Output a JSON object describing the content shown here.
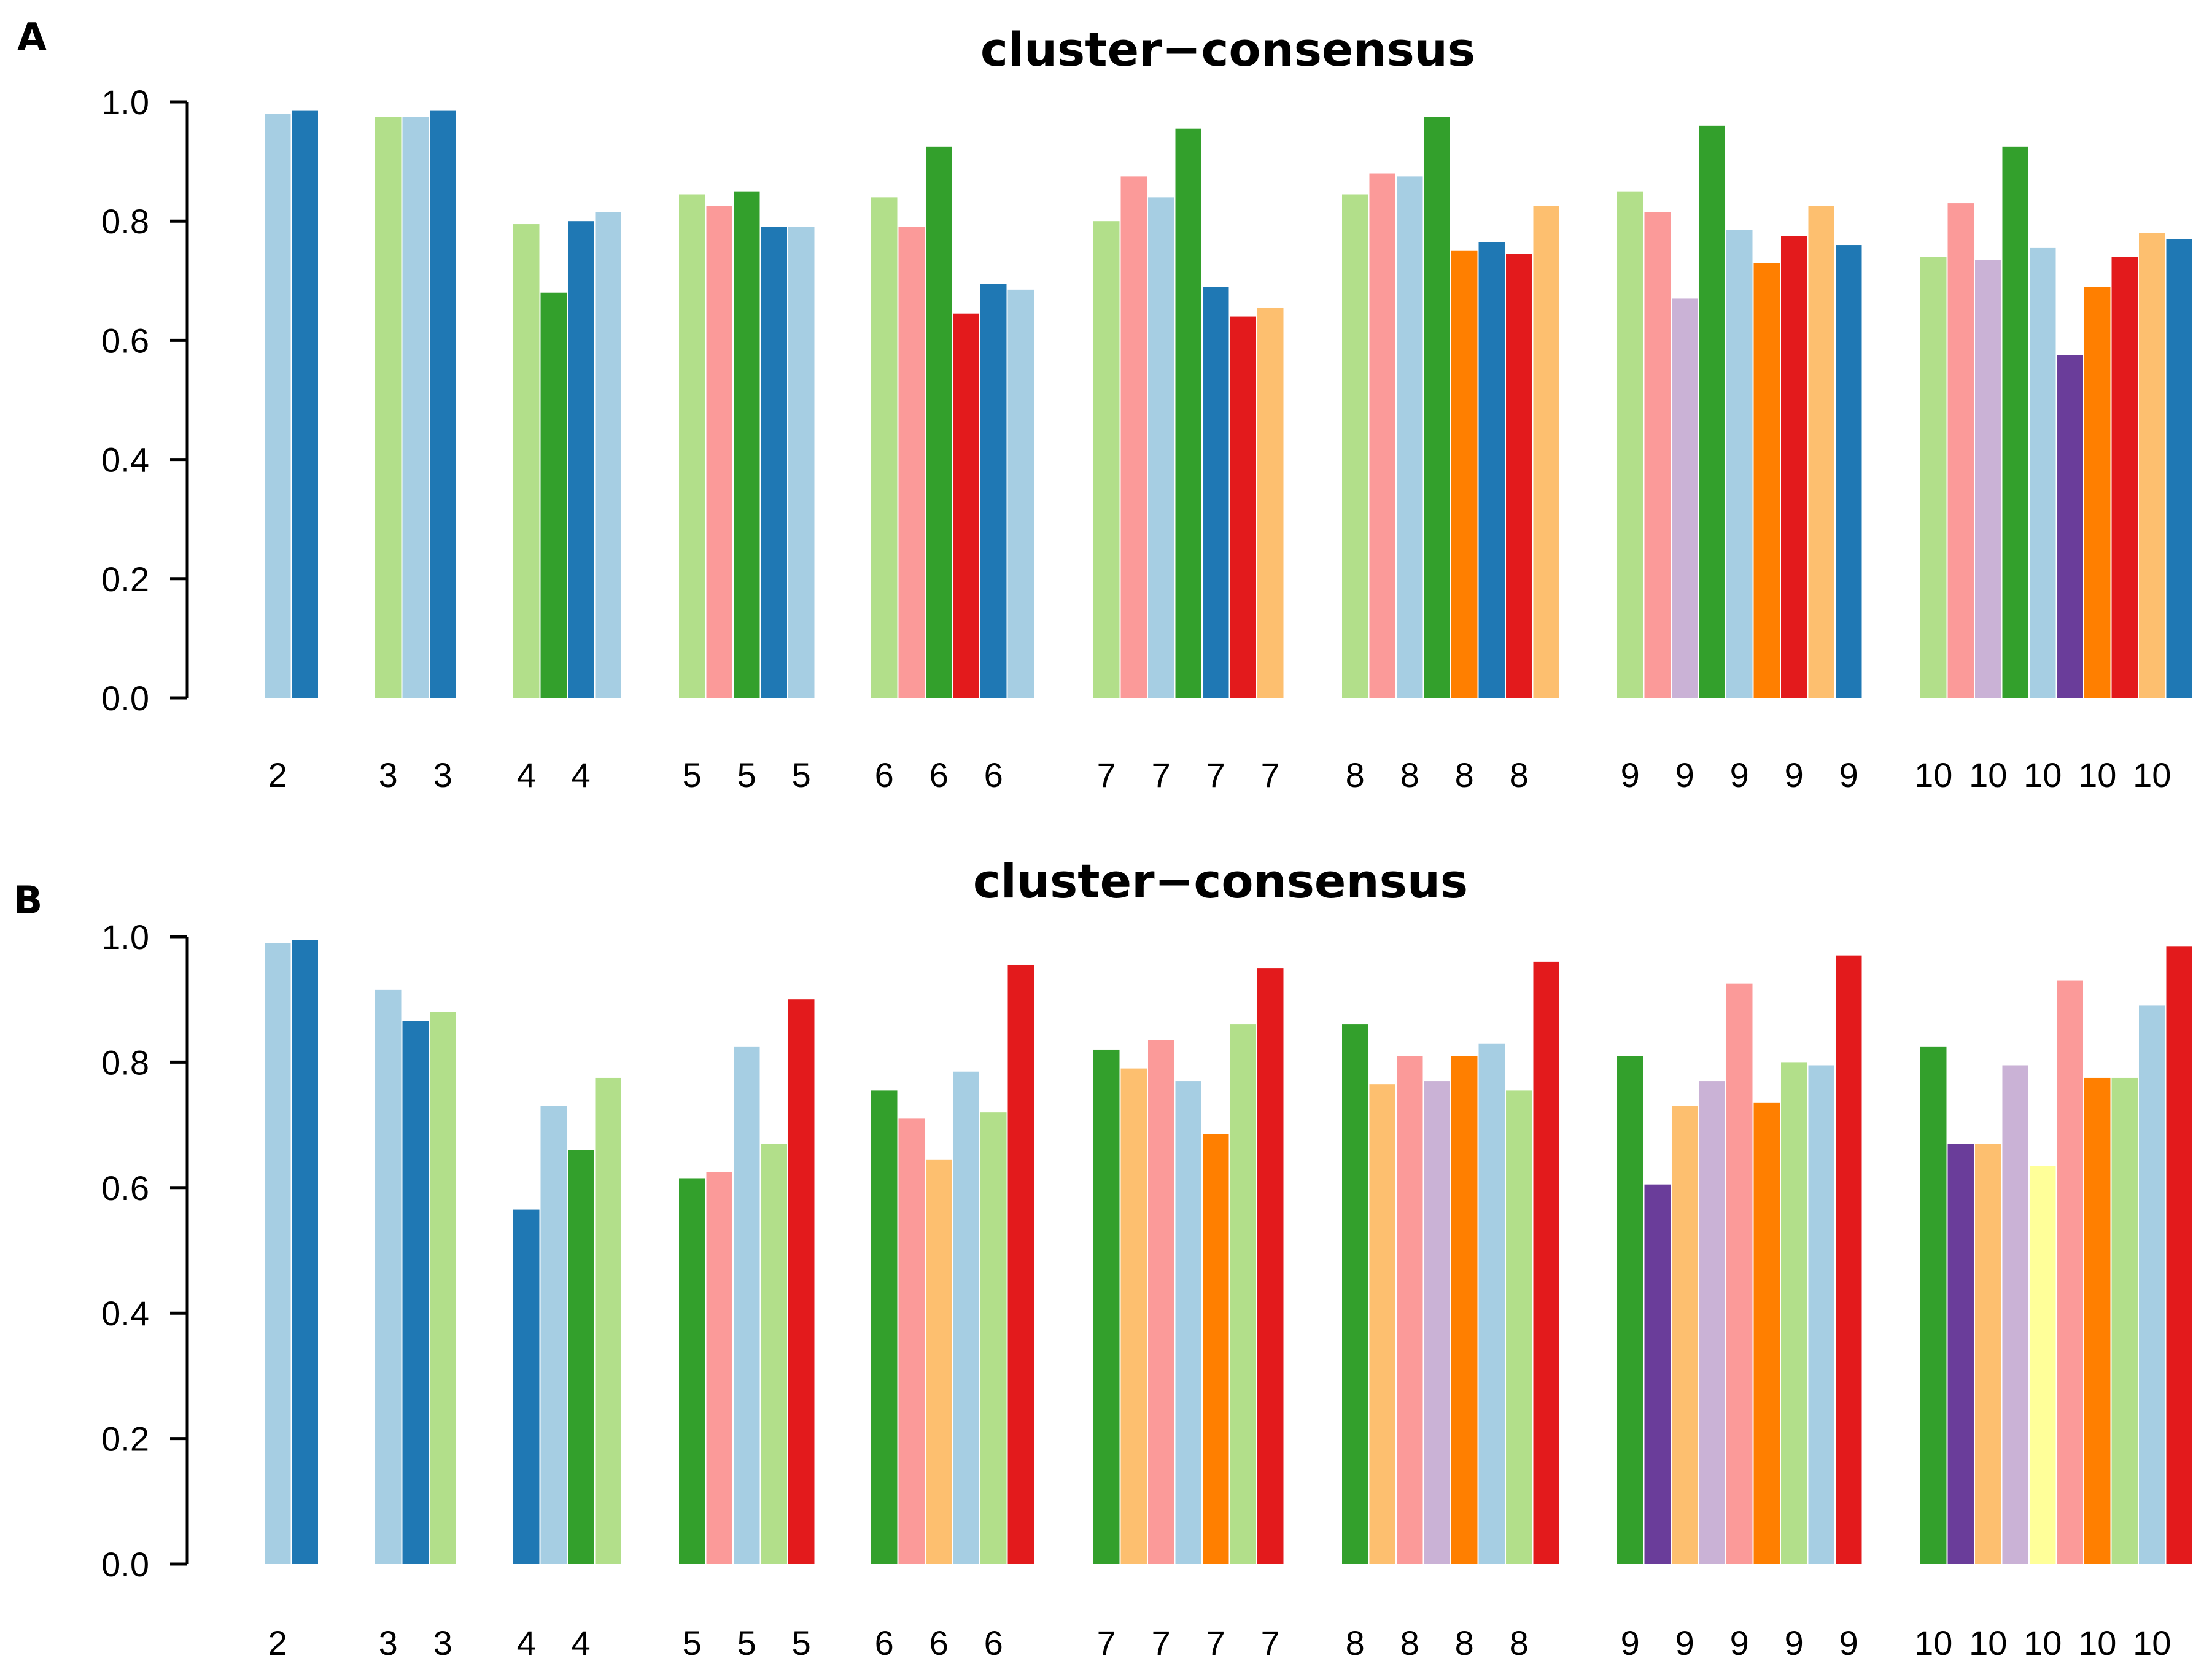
{
  "colors": {
    "light_blue": "#a6cee3",
    "dark_blue": "#1f78b4",
    "light_green": "#b2df8a",
    "dark_green": "#33a02c",
    "pink": "#fb9a99",
    "red": "#e31a1c",
    "light_orange": "#fdbf6f",
    "orange": "#ff7f00",
    "lavender": "#cab2d6",
    "purple": "#6a3d9a",
    "yellow": "#ffff99"
  },
  "chart_data": [
    {
      "panel": "A",
      "type": "bar",
      "title": "cluster−consensus",
      "xlabel": "",
      "ylabel": "",
      "ylim": [
        0,
        1
      ],
      "yticks": [
        "0.0",
        "0.2",
        "0.4",
        "0.6",
        "0.8",
        "1.0"
      ],
      "groups": [
        {
          "k": "2",
          "values": [
            0.98,
            0.985
          ],
          "colors": [
            "light_blue",
            "dark_blue"
          ]
        },
        {
          "k": "3",
          "values": [
            0.975,
            0.975,
            0.985
          ],
          "colors": [
            "light_green",
            "light_blue",
            "dark_blue"
          ]
        },
        {
          "k": "4",
          "values": [
            0.795,
            0.68,
            0.8,
            0.815
          ],
          "colors": [
            "light_green",
            "dark_green",
            "dark_blue",
            "light_blue"
          ]
        },
        {
          "k": "5",
          "values": [
            0.845,
            0.825,
            0.85,
            0.79,
            0.79
          ],
          "colors": [
            "light_green",
            "pink",
            "dark_green",
            "dark_blue",
            "light_blue"
          ]
        },
        {
          "k": "6",
          "values": [
            0.84,
            0.79,
            0.925,
            0.645,
            0.695,
            0.685
          ],
          "colors": [
            "light_green",
            "pink",
            "dark_green",
            "red",
            "dark_blue",
            "light_blue"
          ]
        },
        {
          "k": "7",
          "values": [
            0.8,
            0.875,
            0.84,
            0.955,
            0.69,
            0.64,
            0.655
          ],
          "colors": [
            "light_green",
            "pink",
            "light_blue",
            "dark_green",
            "dark_blue",
            "red",
            "light_orange"
          ]
        },
        {
          "k": "8",
          "values": [
            0.845,
            0.88,
            0.875,
            0.975,
            0.75,
            0.765,
            0.745,
            0.825
          ],
          "colors": [
            "light_green",
            "pink",
            "light_blue",
            "dark_green",
            "orange",
            "dark_blue",
            "red",
            "light_orange"
          ]
        },
        {
          "k": "9",
          "values": [
            0.85,
            0.815,
            0.67,
            0.96,
            0.785,
            0.73,
            0.775,
            0.825,
            0.76
          ],
          "colors": [
            "light_green",
            "pink",
            "lavender",
            "dark_green",
            "light_blue",
            "orange",
            "red",
            "light_orange",
            "dark_blue"
          ]
        },
        {
          "k": "10",
          "values": [
            0.74,
            0.83,
            0.735,
            0.925,
            0.755,
            0.575,
            0.69,
            0.74,
            0.78,
            0.77
          ],
          "colors": [
            "light_green",
            "pink",
            "lavender",
            "dark_green",
            "light_blue",
            "purple",
            "orange",
            "red",
            "light_orange",
            "dark_blue"
          ]
        }
      ]
    },
    {
      "panel": "B",
      "type": "bar",
      "title": "cluster−consensus",
      "xlabel": "",
      "ylabel": "",
      "ylim": [
        0,
        1
      ],
      "yticks": [
        "0.0",
        "0.2",
        "0.4",
        "0.6",
        "0.8",
        "1.0"
      ],
      "groups": [
        {
          "k": "2",
          "values": [
            0.99,
            0.995
          ],
          "colors": [
            "light_blue",
            "dark_blue"
          ]
        },
        {
          "k": "3",
          "values": [
            0.915,
            0.865,
            0.88
          ],
          "colors": [
            "light_blue",
            "dark_blue",
            "light_green"
          ]
        },
        {
          "k": "4",
          "values": [
            0.565,
            0.73,
            0.66,
            0.775
          ],
          "colors": [
            "dark_blue",
            "light_blue",
            "dark_green",
            "light_green"
          ]
        },
        {
          "k": "5",
          "values": [
            0.615,
            0.625,
            0.825,
            0.67,
            0.9
          ],
          "colors": [
            "dark_green",
            "pink",
            "light_blue",
            "light_green",
            "red"
          ]
        },
        {
          "k": "6",
          "values": [
            0.755,
            0.71,
            0.645,
            0.785,
            0.72,
            0.955
          ],
          "colors": [
            "dark_green",
            "pink",
            "light_orange",
            "light_blue",
            "light_green",
            "red"
          ]
        },
        {
          "k": "7",
          "values": [
            0.82,
            0.79,
            0.835,
            0.77,
            0.685,
            0.86,
            0.95
          ],
          "colors": [
            "dark_green",
            "light_orange",
            "pink",
            "light_blue",
            "orange",
            "light_green",
            "red"
          ]
        },
        {
          "k": "8",
          "values": [
            0.86,
            0.765,
            0.81,
            0.77,
            0.81,
            0.83,
            0.755,
            0.96
          ],
          "colors": [
            "dark_green",
            "light_orange",
            "pink",
            "lavender",
            "orange",
            "light_blue",
            "light_green",
            "red"
          ]
        },
        {
          "k": "9",
          "values": [
            0.81,
            0.605,
            0.73,
            0.77,
            0.925,
            0.735,
            0.8,
            0.795,
            0.97
          ],
          "colors": [
            "dark_green",
            "purple",
            "light_orange",
            "lavender",
            "pink",
            "orange",
            "light_green",
            "light_blue",
            "red"
          ]
        },
        {
          "k": "10",
          "values": [
            0.825,
            0.67,
            0.67,
            0.795,
            0.635,
            0.93,
            0.775,
            0.775,
            0.89,
            0.985
          ],
          "colors": [
            "dark_green",
            "purple",
            "light_orange",
            "lavender",
            "yellow",
            "pink",
            "orange",
            "light_green",
            "light_blue",
            "red"
          ]
        }
      ]
    }
  ]
}
